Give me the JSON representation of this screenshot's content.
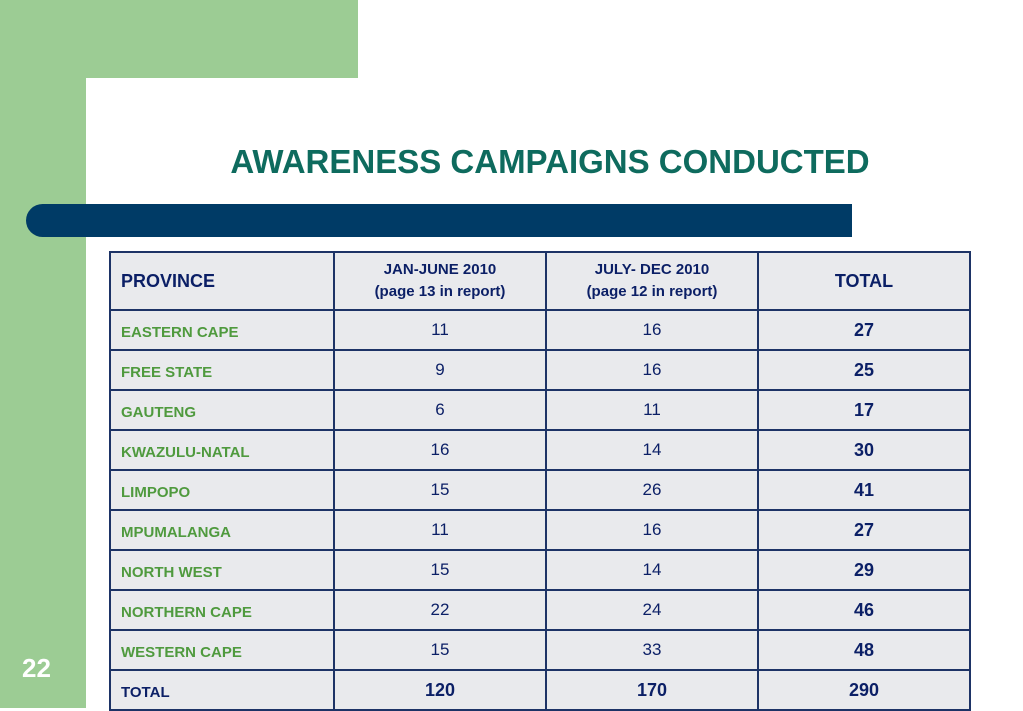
{
  "slide": {
    "title": "AWARENESS CAMPAIGNS CONDUCTED",
    "page_number": "22"
  },
  "table": {
    "headers": {
      "province": "PROVINCE",
      "h1_line1": "JAN-JUNE 2010",
      "h1_line2": "(page 13 in report)",
      "h2_line1": "JULY- DEC 2010",
      "h2_line2": "(page 12 in report)",
      "total": "TOTAL"
    },
    "rows": [
      {
        "province": "EASTERN CAPE",
        "jan_june": "11",
        "july_dec": "16",
        "total": "27"
      },
      {
        "province": "FREE STATE",
        "jan_june": "9",
        "july_dec": "16",
        "total": "25"
      },
      {
        "province": "GAUTENG",
        "jan_june": "6",
        "july_dec": "11",
        "total": "17"
      },
      {
        "province": "KWAZULU-NATAL",
        "jan_june": "16",
        "july_dec": "14",
        "total": "30"
      },
      {
        "province": "LIMPOPO",
        "jan_june": "15",
        "july_dec": "26",
        "total": "41"
      },
      {
        "province": "MPUMALANGA",
        "jan_june": "11",
        "july_dec": "16",
        "total": "27"
      },
      {
        "province": "NORTH WEST",
        "jan_june": "15",
        "july_dec": "14",
        "total": "29"
      },
      {
        "province": "NORTHERN CAPE",
        "jan_june": "22",
        "july_dec": "24",
        "total": "46"
      },
      {
        "province": "WESTERN CAPE",
        "jan_june": "15",
        "july_dec": "33",
        "total": "48"
      }
    ],
    "total_row": {
      "province": "TOTAL",
      "jan_june": "120",
      "july_dec": "170",
      "total": "290"
    }
  },
  "colors": {
    "background_green": "#9ccc94",
    "title_teal": "#0e6b5e",
    "bar_navy": "#003b66",
    "province_green": "#4f9a3e",
    "table_text_navy": "#0b1f66",
    "cell_background": "#e9eaed"
  }
}
